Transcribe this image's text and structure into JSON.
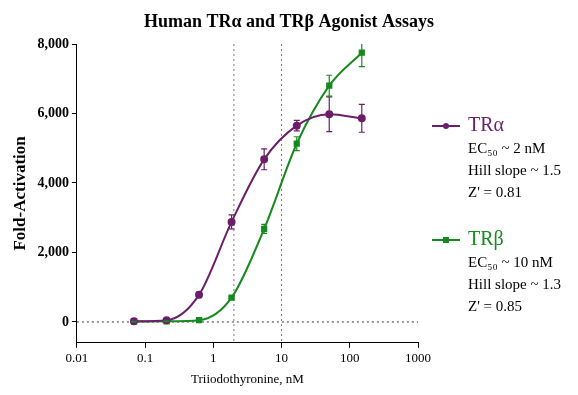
{
  "chart_data": {
    "type": "line",
    "title": "Human TRα and TRβ Agonist Assays",
    "x_label": "Triiodothyronine, nM",
    "y_label": "Fold-Activation",
    "log": "x",
    "grid": false,
    "legend": "right",
    "xlim": [
      0.01,
      1000
    ],
    "xticks": [
      0.01,
      0.1,
      1,
      10,
      100,
      1000
    ],
    "ylim": [
      -600,
      8000
    ],
    "yticks": [
      0,
      {
        "value": 2000,
        "label": "2,000"
      },
      {
        "value": 4000,
        "label": "4,000"
      },
      {
        "value": 6000,
        "label": "6,000"
      },
      {
        "value": 8000,
        "label": "8,000"
      }
    ],
    "x": [
      0.0686,
      0.206,
      0.617,
      1.85,
      5.56,
      16.7,
      50,
      150
    ],
    "vlines": [
      2,
      10
    ],
    "hline": 0,
    "series": [
      {
        "name": "TRα",
        "color": "#6b1f6b",
        "marker": "circle",
        "line_style": "solid",
        "values": [
          20,
          50,
          780,
          2880,
          4680,
          5650,
          5980,
          5860
        ],
        "errors": [
          50,
          30,
          80,
          200,
          300,
          150,
          500,
          400
        ],
        "legend_text": [
          "EC₅₀ ~ 2 nM",
          "Hill slope ~ 1.5",
          "Z' = 0.81"
        ]
      },
      {
        "name": "TRβ",
        "color": "#16891f",
        "marker": "square",
        "line_style": "solid",
        "values": [
          10,
          20,
          50,
          700,
          2680,
          5130,
          6800,
          7750
        ],
        "errors": [
          10,
          10,
          20,
          30,
          130,
          200,
          300,
          400
        ],
        "legend_text": [
          "EC₅₀ ~ 10 nM",
          "Hill slope ~ 1.3",
          "Z' = 0.85"
        ]
      }
    ]
  }
}
